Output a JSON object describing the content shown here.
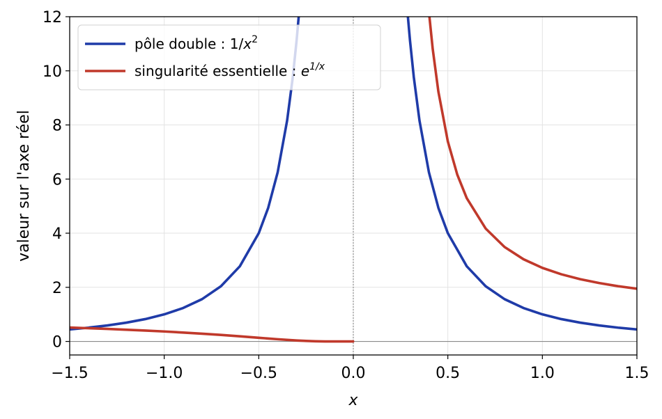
{
  "chart_data": {
    "type": "line",
    "xlabel": "x",
    "ylabel": "valeur sur l'axe réel",
    "xlim": [
      -1.5,
      1.5
    ],
    "ylim": [
      -0.5,
      12
    ],
    "xticks": [
      -1.5,
      -1.0,
      -0.5,
      0.0,
      0.5,
      1.0,
      1.5
    ],
    "xtick_labels": [
      "−1.5",
      "−1.0",
      "−0.5",
      "0.0",
      "0.5",
      "1.0",
      "1.5"
    ],
    "yticks": [
      0,
      2,
      4,
      6,
      8,
      10,
      12
    ],
    "ytick_labels": [
      "0",
      "2",
      "4",
      "6",
      "8",
      "10",
      "12"
    ],
    "grid": true,
    "legend_position": "top-left",
    "series": [
      {
        "name": "pôle double : 1/x²",
        "legend_main": "pôle double : 1/",
        "legend_var": "x",
        "legend_sup": "2",
        "color": "#1f3ba8",
        "segments": [
          {
            "x": [
              -1.5,
              -1.4,
              -1.3,
              -1.2,
              -1.1,
              -1.0,
              -0.9,
              -0.8,
              -0.7,
              -0.6,
              -0.5,
              -0.45,
              -0.4,
              -0.35,
              -0.32,
              -0.3,
              -0.288
            ],
            "y": [
              0.444,
              0.51,
              0.592,
              0.694,
              0.826,
              1.0,
              1.235,
              1.5625,
              2.041,
              2.778,
              4.0,
              4.938,
              6.25,
              8.163,
              9.766,
              11.111,
              12.06
            ]
          },
          {
            "x": [
              0.288,
              0.3,
              0.32,
              0.35,
              0.4,
              0.45,
              0.5,
              0.6,
              0.7,
              0.8,
              0.9,
              1.0,
              1.1,
              1.2,
              1.3,
              1.4,
              1.5
            ],
            "y": [
              12.06,
              11.111,
              9.766,
              8.163,
              6.25,
              4.938,
              4.0,
              2.778,
              2.041,
              1.5625,
              1.235,
              1.0,
              0.826,
              0.694,
              0.592,
              0.51,
              0.444
            ]
          }
        ]
      },
      {
        "name": "singularité essentielle : e^(1/x)",
        "legend_main": "singularité essentielle : ",
        "legend_var": "e",
        "legend_sup": "1/x",
        "color": "#c0392b",
        "segments": [
          {
            "x": [
              -1.5,
              -1.3,
              -1.1,
              -1.0,
              -0.9,
              -0.8,
              -0.7,
              -0.6,
              -0.5,
              -0.4,
              -0.3,
              -0.25,
              -0.2,
              -0.15,
              -0.1,
              -0.05,
              -0.001
            ],
            "y": [
              0.513,
              0.463,
              0.403,
              0.368,
              0.329,
              0.287,
              0.24,
              0.189,
              0.135,
              0.082,
              0.036,
              0.018,
              0.007,
              0.001,
              0.0,
              0.0,
              0.0
            ]
          },
          {
            "x": [
              0.4026,
              0.42,
              0.45,
              0.5,
              0.55,
              0.6,
              0.7,
              0.8,
              0.9,
              1.0,
              1.1,
              1.2,
              1.3,
              1.4,
              1.5
            ],
            "y": [
              12.0,
              10.81,
              9.23,
              7.389,
              6.163,
              5.294,
              4.172,
              3.49,
              3.038,
              2.718,
              2.482,
              2.301,
              2.158,
              2.042,
              1.948
            ]
          }
        ]
      }
    ]
  }
}
